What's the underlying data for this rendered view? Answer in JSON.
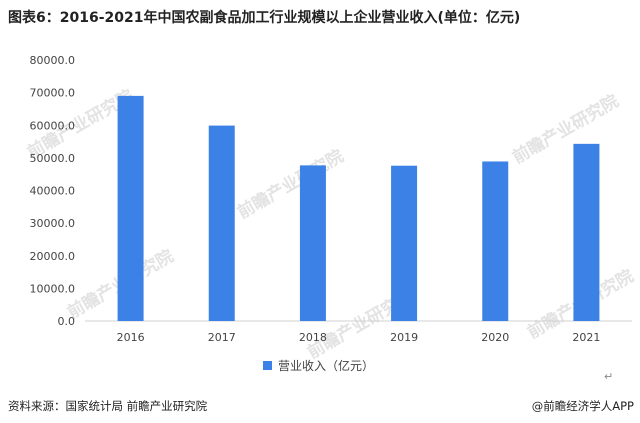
{
  "title": "图表6：2016-2021年中国农副食品加工行业规模以上企业营业收入(单位：亿元)",
  "source": "资料来源：国家统计局 前瞻产业研究院",
  "credit": "@前瞻经济学人APP",
  "watermark": "前瞻产业研究院",
  "return_mark": "↵",
  "colors": {
    "bar": "#3c82e6",
    "axis": "#d0d0d0",
    "tick_text": "#444444"
  },
  "chart_data": {
    "type": "bar",
    "categories": [
      "2016",
      "2017",
      "2018",
      "2019",
      "2020",
      "2021"
    ],
    "series": [
      {
        "name": "营业收入（亿元）",
        "values": [
          69000,
          59900,
          47700,
          47600,
          48900,
          54300
        ]
      }
    ],
    "ylim": [
      0,
      80000
    ],
    "yticks": [
      0,
      10000,
      20000,
      30000,
      40000,
      50000,
      60000,
      70000,
      80000
    ],
    "ytick_labels": [
      "0.0",
      "10000.0",
      "20000.0",
      "30000.0",
      "40000.0",
      "50000.0",
      "60000.0",
      "70000.0",
      "80000.0"
    ],
    "grid": false,
    "legend": "bottom-center"
  }
}
